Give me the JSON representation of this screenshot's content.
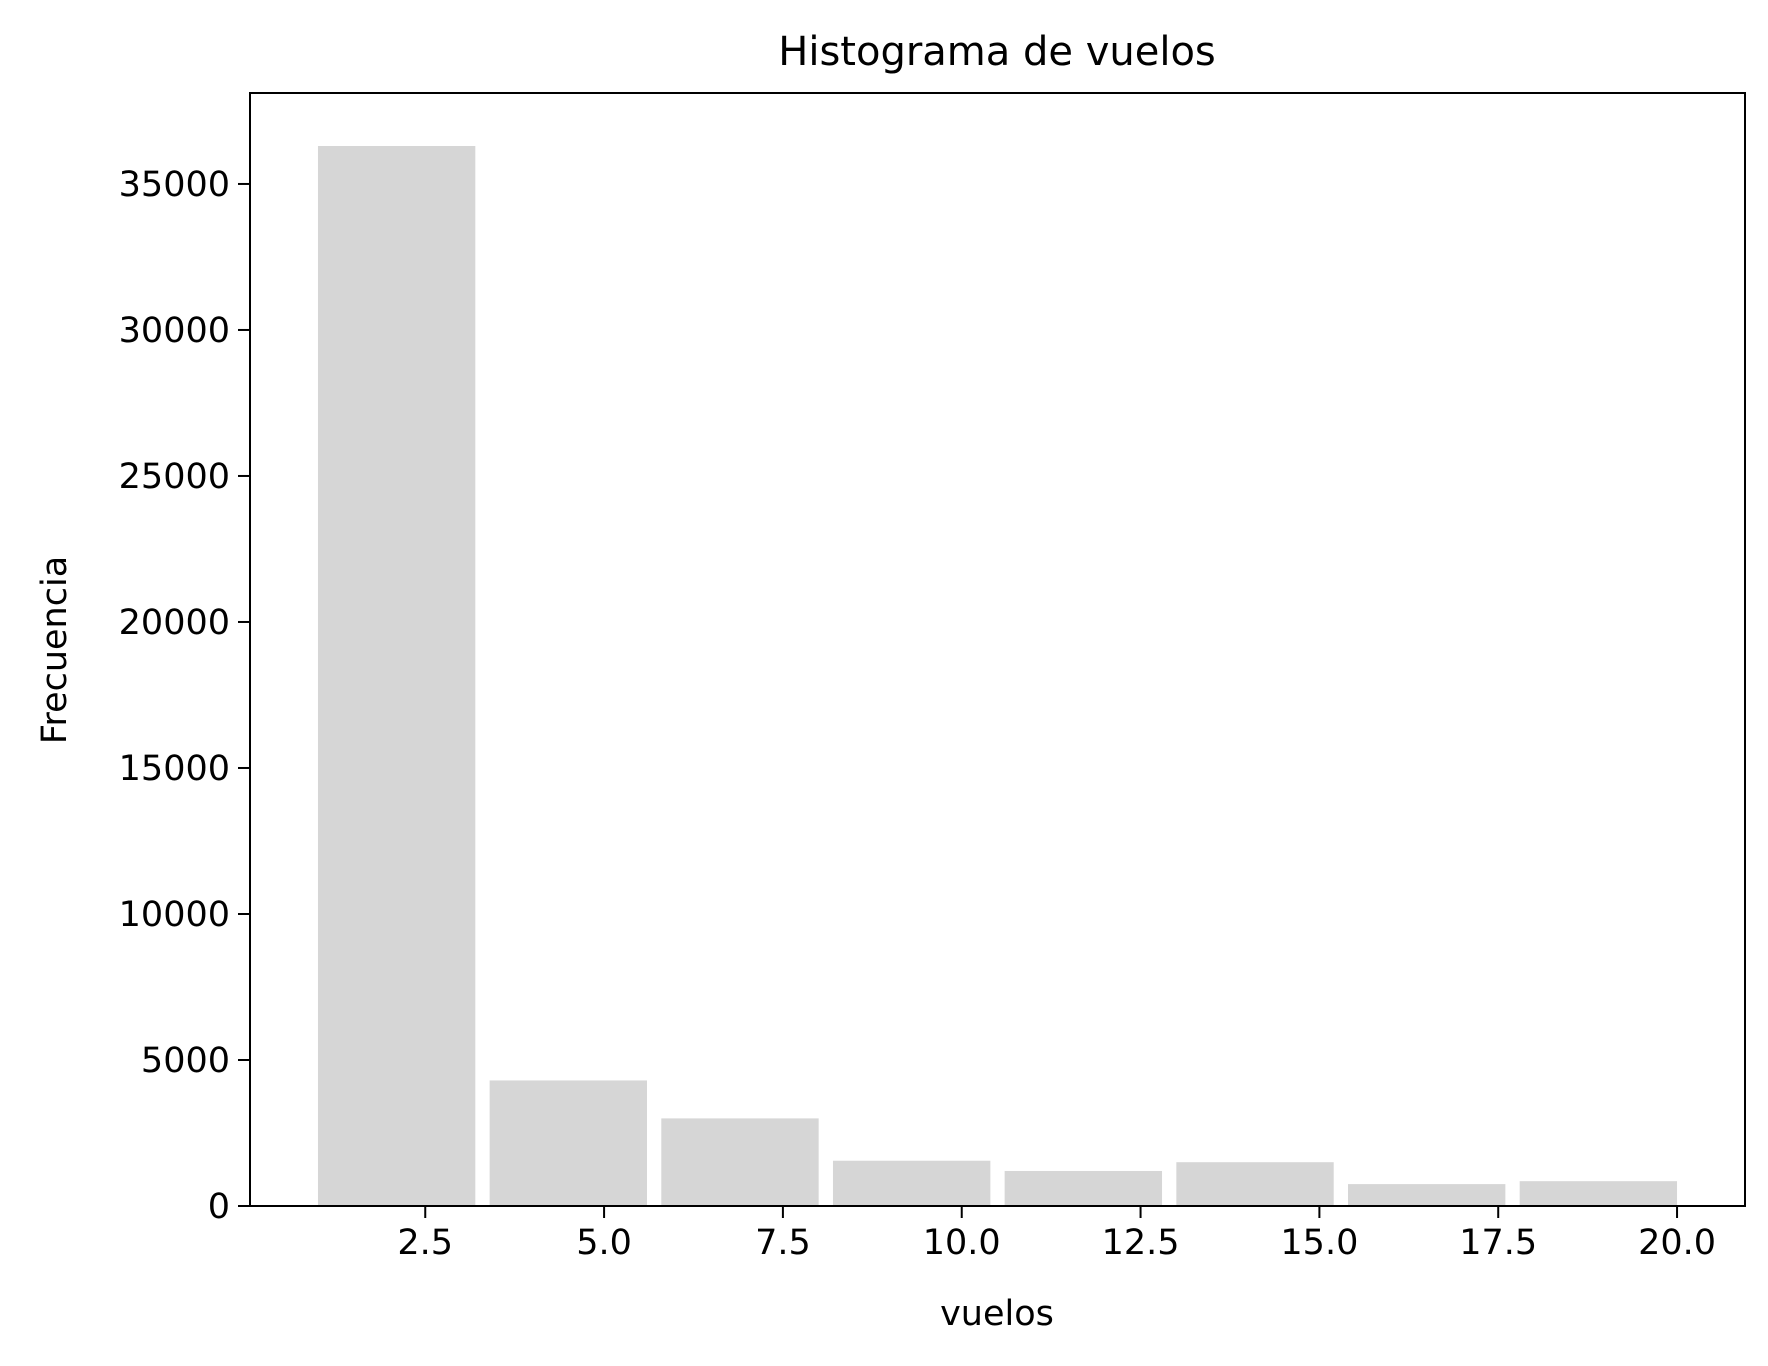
{
  "chart_data": {
    "type": "bar",
    "title": "Histograma de vuelos",
    "xlabel": "vuelos",
    "ylabel": "Frecuencia",
    "bins": [
      {
        "start": 1.0,
        "end": 3.2,
        "value": 36300
      },
      {
        "start": 3.4,
        "end": 5.6,
        "value": 4300
      },
      {
        "start": 5.8,
        "end": 8.0,
        "value": 3000
      },
      {
        "start": 8.2,
        "end": 10.4,
        "value": 1550
      },
      {
        "start": 10.6,
        "end": 12.8,
        "value": 1200
      },
      {
        "start": 13.0,
        "end": 15.2,
        "value": 1500
      },
      {
        "start": 15.4,
        "end": 17.6,
        "value": 750
      },
      {
        "start": 17.8,
        "end": 20.0,
        "value": 850
      }
    ],
    "xlim": [
      0.05,
      20.95
    ],
    "ylim": [
      0,
      38115
    ],
    "xticks": [
      2.5,
      5.0,
      7.5,
      10.0,
      12.5,
      15.0,
      17.5,
      20.0
    ],
    "xtick_labels": [
      "2.5",
      "5.0",
      "7.5",
      "10.0",
      "12.5",
      "15.0",
      "17.5",
      "20.0"
    ],
    "yticks": [
      0,
      5000,
      10000,
      15000,
      20000,
      25000,
      30000,
      35000
    ],
    "ytick_labels": [
      "0",
      "5000",
      "10000",
      "15000",
      "20000",
      "25000",
      "30000",
      "35000"
    ],
    "bar_color": "#d6d6d6",
    "grid": false,
    "legend": "none"
  }
}
